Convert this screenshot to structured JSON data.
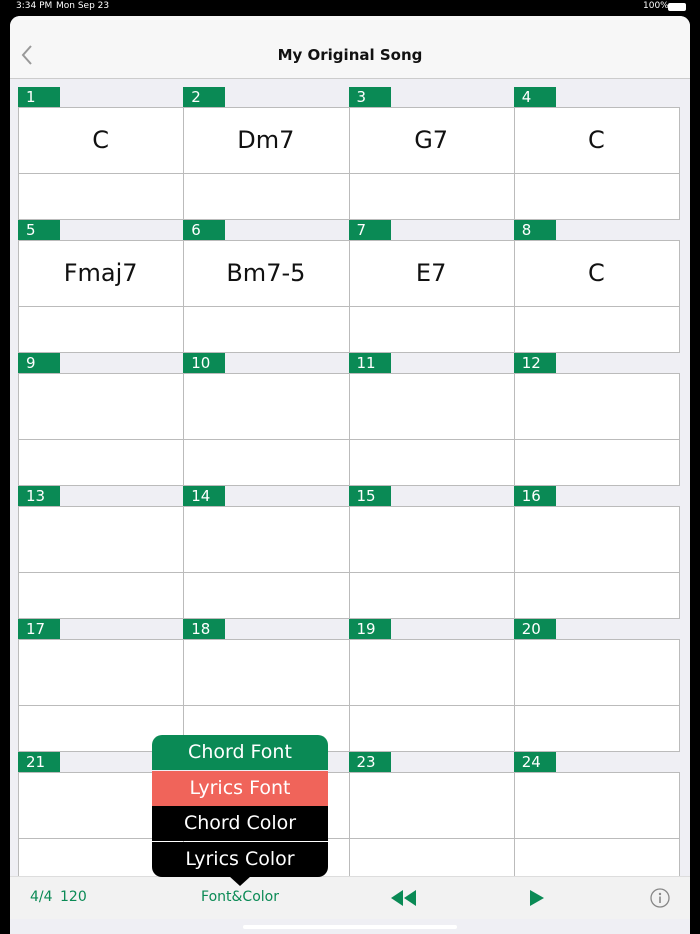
{
  "status_bar": {
    "time": "3:34 PM",
    "date": "Mon Sep 23",
    "battery": "100%"
  },
  "header": {
    "title": "My Original Song"
  },
  "measures": [
    {
      "number": 1,
      "chord": "C"
    },
    {
      "number": 2,
      "chord": "Dm7"
    },
    {
      "number": 3,
      "chord": "G7"
    },
    {
      "number": 4,
      "chord": "C"
    },
    {
      "number": 5,
      "chord": "Fmaj7"
    },
    {
      "number": 6,
      "chord": "Bm7-5"
    },
    {
      "number": 7,
      "chord": "E7"
    },
    {
      "number": 8,
      "chord": "C"
    },
    {
      "number": 9
    },
    {
      "number": 10
    },
    {
      "number": 11
    },
    {
      "number": 12
    },
    {
      "number": 13
    },
    {
      "number": 14
    },
    {
      "number": 15
    },
    {
      "number": 16
    },
    {
      "number": 17
    },
    {
      "number": 18
    },
    {
      "number": 19
    },
    {
      "number": 20
    },
    {
      "number": 21
    },
    {
      "number": null
    },
    {
      "number": 23
    },
    {
      "number": 24
    }
  ],
  "popup_menu": {
    "items": [
      "Chord Font",
      "Lyrics Font",
      "Chord Color",
      "Lyrics Color"
    ]
  },
  "toolbar": {
    "time_signature": "4/4",
    "tempo": "120",
    "font_color_button": "Font&Color"
  }
}
